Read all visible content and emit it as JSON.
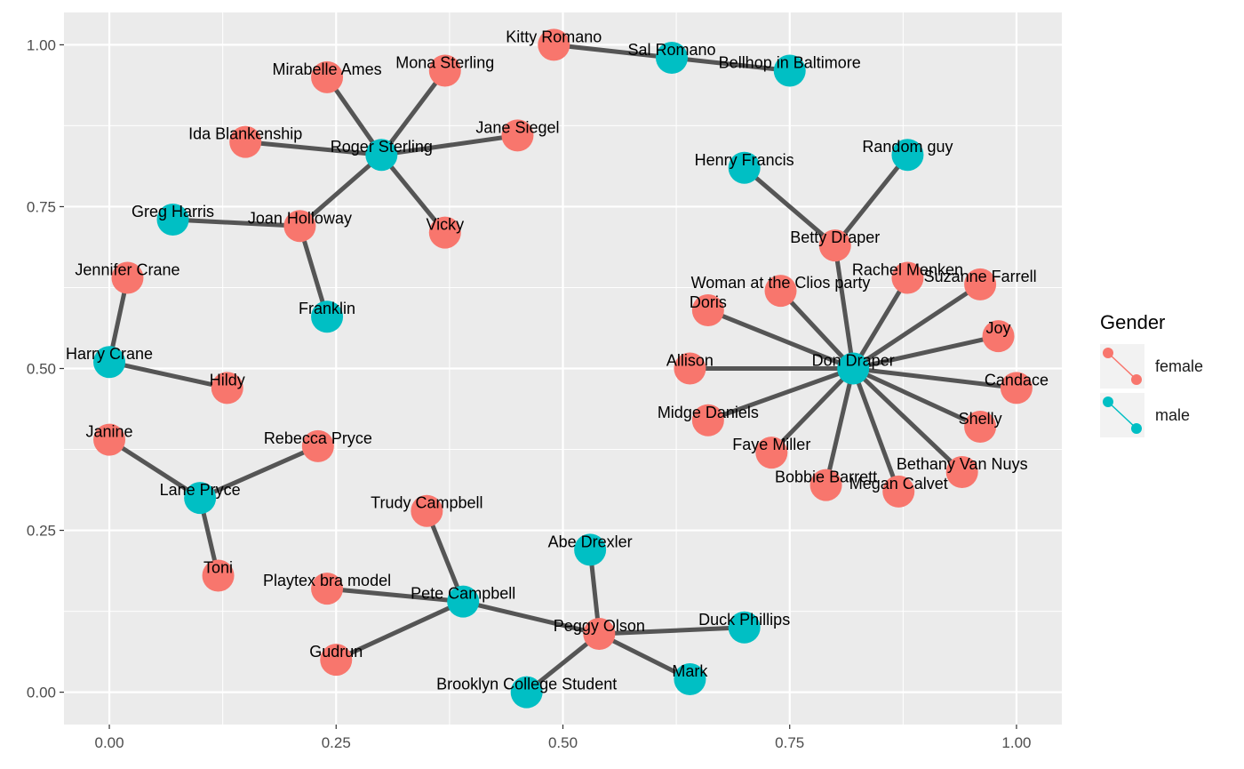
{
  "chart_data": {
    "type": "network",
    "xlim": [
      -0.05,
      1.05
    ],
    "ylim": [
      -0.05,
      1.05
    ],
    "x_ticks": [
      0.0,
      0.25,
      0.5,
      0.75,
      1.0
    ],
    "x_tick_labels": [
      "0.00",
      "0.25",
      "0.50",
      "0.75",
      "1.00"
    ],
    "y_ticks": [
      0.0,
      0.25,
      0.5,
      0.75,
      1.0
    ],
    "y_tick_labels": [
      "0.00",
      "0.25",
      "0.50",
      "0.75",
      "1.00"
    ],
    "grid": true,
    "legend": {
      "title": "Gender",
      "position": "right",
      "entries": [
        {
          "label": "female",
          "color": "#F8766D"
        },
        {
          "label": "male",
          "color": "#00BFC4"
        }
      ]
    },
    "colors": {
      "female": "#F8766D",
      "male": "#00BFC4",
      "edge": "#555555",
      "panel": "#EBEBEB",
      "grid": "#FFFFFF"
    },
    "nodes": [
      {
        "id": "Kitty Romano",
        "x": 0.49,
        "y": 1.0,
        "gender": "female"
      },
      {
        "id": "Sal Romano",
        "x": 0.62,
        "y": 0.98,
        "gender": "male"
      },
      {
        "id": "Bellhop in Baltimore",
        "x": 0.75,
        "y": 0.96,
        "gender": "male"
      },
      {
        "id": "Mirabelle Ames",
        "x": 0.24,
        "y": 0.95,
        "gender": "female"
      },
      {
        "id": "Mona Sterling",
        "x": 0.37,
        "y": 0.96,
        "gender": "female"
      },
      {
        "id": "Ida Blankenship",
        "x": 0.15,
        "y": 0.85,
        "gender": "female"
      },
      {
        "id": "Roger Sterling",
        "x": 0.3,
        "y": 0.83,
        "gender": "male"
      },
      {
        "id": "Jane Siegel",
        "x": 0.45,
        "y": 0.86,
        "gender": "female"
      },
      {
        "id": "Greg Harris",
        "x": 0.07,
        "y": 0.73,
        "gender": "male"
      },
      {
        "id": "Joan Holloway",
        "x": 0.21,
        "y": 0.72,
        "gender": "female"
      },
      {
        "id": "Vicky",
        "x": 0.37,
        "y": 0.71,
        "gender": "female"
      },
      {
        "id": "Franklin",
        "x": 0.24,
        "y": 0.58,
        "gender": "male"
      },
      {
        "id": "Jennifer Crane",
        "x": 0.02,
        "y": 0.64,
        "gender": "female"
      },
      {
        "id": "Harry Crane",
        "x": 0.0,
        "y": 0.51,
        "gender": "male"
      },
      {
        "id": "Hildy",
        "x": 0.13,
        "y": 0.47,
        "gender": "female"
      },
      {
        "id": "Janine",
        "x": 0.0,
        "y": 0.39,
        "gender": "female"
      },
      {
        "id": "Rebecca Pryce",
        "x": 0.23,
        "y": 0.38,
        "gender": "female"
      },
      {
        "id": "Lane Pryce",
        "x": 0.1,
        "y": 0.3,
        "gender": "male"
      },
      {
        "id": "Toni",
        "x": 0.12,
        "y": 0.18,
        "gender": "female"
      },
      {
        "id": "Trudy Campbell",
        "x": 0.35,
        "y": 0.28,
        "gender": "female"
      },
      {
        "id": "Playtex bra model",
        "x": 0.24,
        "y": 0.16,
        "gender": "female"
      },
      {
        "id": "Pete Campbell",
        "x": 0.39,
        "y": 0.14,
        "gender": "male"
      },
      {
        "id": "Gudrun",
        "x": 0.25,
        "y": 0.05,
        "gender": "female"
      },
      {
        "id": "Abe Drexler",
        "x": 0.53,
        "y": 0.22,
        "gender": "male"
      },
      {
        "id": "Peggy Olson",
        "x": 0.54,
        "y": 0.09,
        "gender": "female"
      },
      {
        "id": "Duck Phillips",
        "x": 0.7,
        "y": 0.1,
        "gender": "male"
      },
      {
        "id": "Brooklyn College Student",
        "x": 0.46,
        "y": 0.0,
        "gender": "male"
      },
      {
        "id": "Mark",
        "x": 0.64,
        "y": 0.02,
        "gender": "male"
      },
      {
        "id": "Henry Francis",
        "x": 0.7,
        "y": 0.81,
        "gender": "male"
      },
      {
        "id": "Random guy",
        "x": 0.88,
        "y": 0.83,
        "gender": "male"
      },
      {
        "id": "Betty Draper",
        "x": 0.8,
        "y": 0.69,
        "gender": "female"
      },
      {
        "id": "Rachel Menken",
        "x": 0.88,
        "y": 0.64,
        "gender": "female"
      },
      {
        "id": "Suzanne Farrell",
        "x": 0.96,
        "y": 0.63,
        "gender": "female"
      },
      {
        "id": "Woman at the Clios party",
        "x": 0.74,
        "y": 0.62,
        "gender": "female"
      },
      {
        "id": "Doris",
        "x": 0.66,
        "y": 0.59,
        "gender": "female"
      },
      {
        "id": "Joy",
        "x": 0.98,
        "y": 0.55,
        "gender": "female"
      },
      {
        "id": "Allison",
        "x": 0.64,
        "y": 0.5,
        "gender": "female"
      },
      {
        "id": "Don Draper",
        "x": 0.82,
        "y": 0.5,
        "gender": "male"
      },
      {
        "id": "Candace",
        "x": 1.0,
        "y": 0.47,
        "gender": "female"
      },
      {
        "id": "Midge Daniels",
        "x": 0.66,
        "y": 0.42,
        "gender": "female"
      },
      {
        "id": "Shelly",
        "x": 0.96,
        "y": 0.41,
        "gender": "female"
      },
      {
        "id": "Faye Miller",
        "x": 0.73,
        "y": 0.37,
        "gender": "female"
      },
      {
        "id": "Bethany Van Nuys",
        "x": 0.94,
        "y": 0.34,
        "gender": "female"
      },
      {
        "id": "Bobbie Barrett",
        "x": 0.79,
        "y": 0.32,
        "gender": "female"
      },
      {
        "id": "Megan Calvet",
        "x": 0.87,
        "y": 0.31,
        "gender": "female"
      }
    ],
    "edges": [
      [
        "Kitty Romano",
        "Sal Romano"
      ],
      [
        "Sal Romano",
        "Bellhop in Baltimore"
      ],
      [
        "Roger Sterling",
        "Mirabelle Ames"
      ],
      [
        "Roger Sterling",
        "Mona Sterling"
      ],
      [
        "Roger Sterling",
        "Ida Blankenship"
      ],
      [
        "Roger Sterling",
        "Jane Siegel"
      ],
      [
        "Roger Sterling",
        "Vicky"
      ],
      [
        "Roger Sterling",
        "Joan Holloway"
      ],
      [
        "Joan Holloway",
        "Greg Harris"
      ],
      [
        "Joan Holloway",
        "Franklin"
      ],
      [
        "Jennifer Crane",
        "Harry Crane"
      ],
      [
        "Harry Crane",
        "Hildy"
      ],
      [
        "Janine",
        "Lane Pryce"
      ],
      [
        "Rebecca Pryce",
        "Lane Pryce"
      ],
      [
        "Lane Pryce",
        "Toni"
      ],
      [
        "Trudy Campbell",
        "Pete Campbell"
      ],
      [
        "Playtex bra model",
        "Pete Campbell"
      ],
      [
        "Pete Campbell",
        "Gudrun"
      ],
      [
        "Pete Campbell",
        "Peggy Olson"
      ],
      [
        "Abe Drexler",
        "Peggy Olson"
      ],
      [
        "Peggy Olson",
        "Duck Phillips"
      ],
      [
        "Peggy Olson",
        "Brooklyn College Student"
      ],
      [
        "Peggy Olson",
        "Mark"
      ],
      [
        "Henry Francis",
        "Betty Draper"
      ],
      [
        "Random guy",
        "Betty Draper"
      ],
      [
        "Betty Draper",
        "Don Draper"
      ],
      [
        "Don Draper",
        "Rachel Menken"
      ],
      [
        "Don Draper",
        "Suzanne Farrell"
      ],
      [
        "Don Draper",
        "Woman at the Clios party"
      ],
      [
        "Don Draper",
        "Doris"
      ],
      [
        "Don Draper",
        "Joy"
      ],
      [
        "Don Draper",
        "Allison"
      ],
      [
        "Don Draper",
        "Candace"
      ],
      [
        "Don Draper",
        "Midge Daniels"
      ],
      [
        "Don Draper",
        "Shelly"
      ],
      [
        "Don Draper",
        "Faye Miller"
      ],
      [
        "Don Draper",
        "Bethany Van Nuys"
      ],
      [
        "Don Draper",
        "Bobbie Barrett"
      ],
      [
        "Don Draper",
        "Megan Calvet"
      ]
    ]
  }
}
